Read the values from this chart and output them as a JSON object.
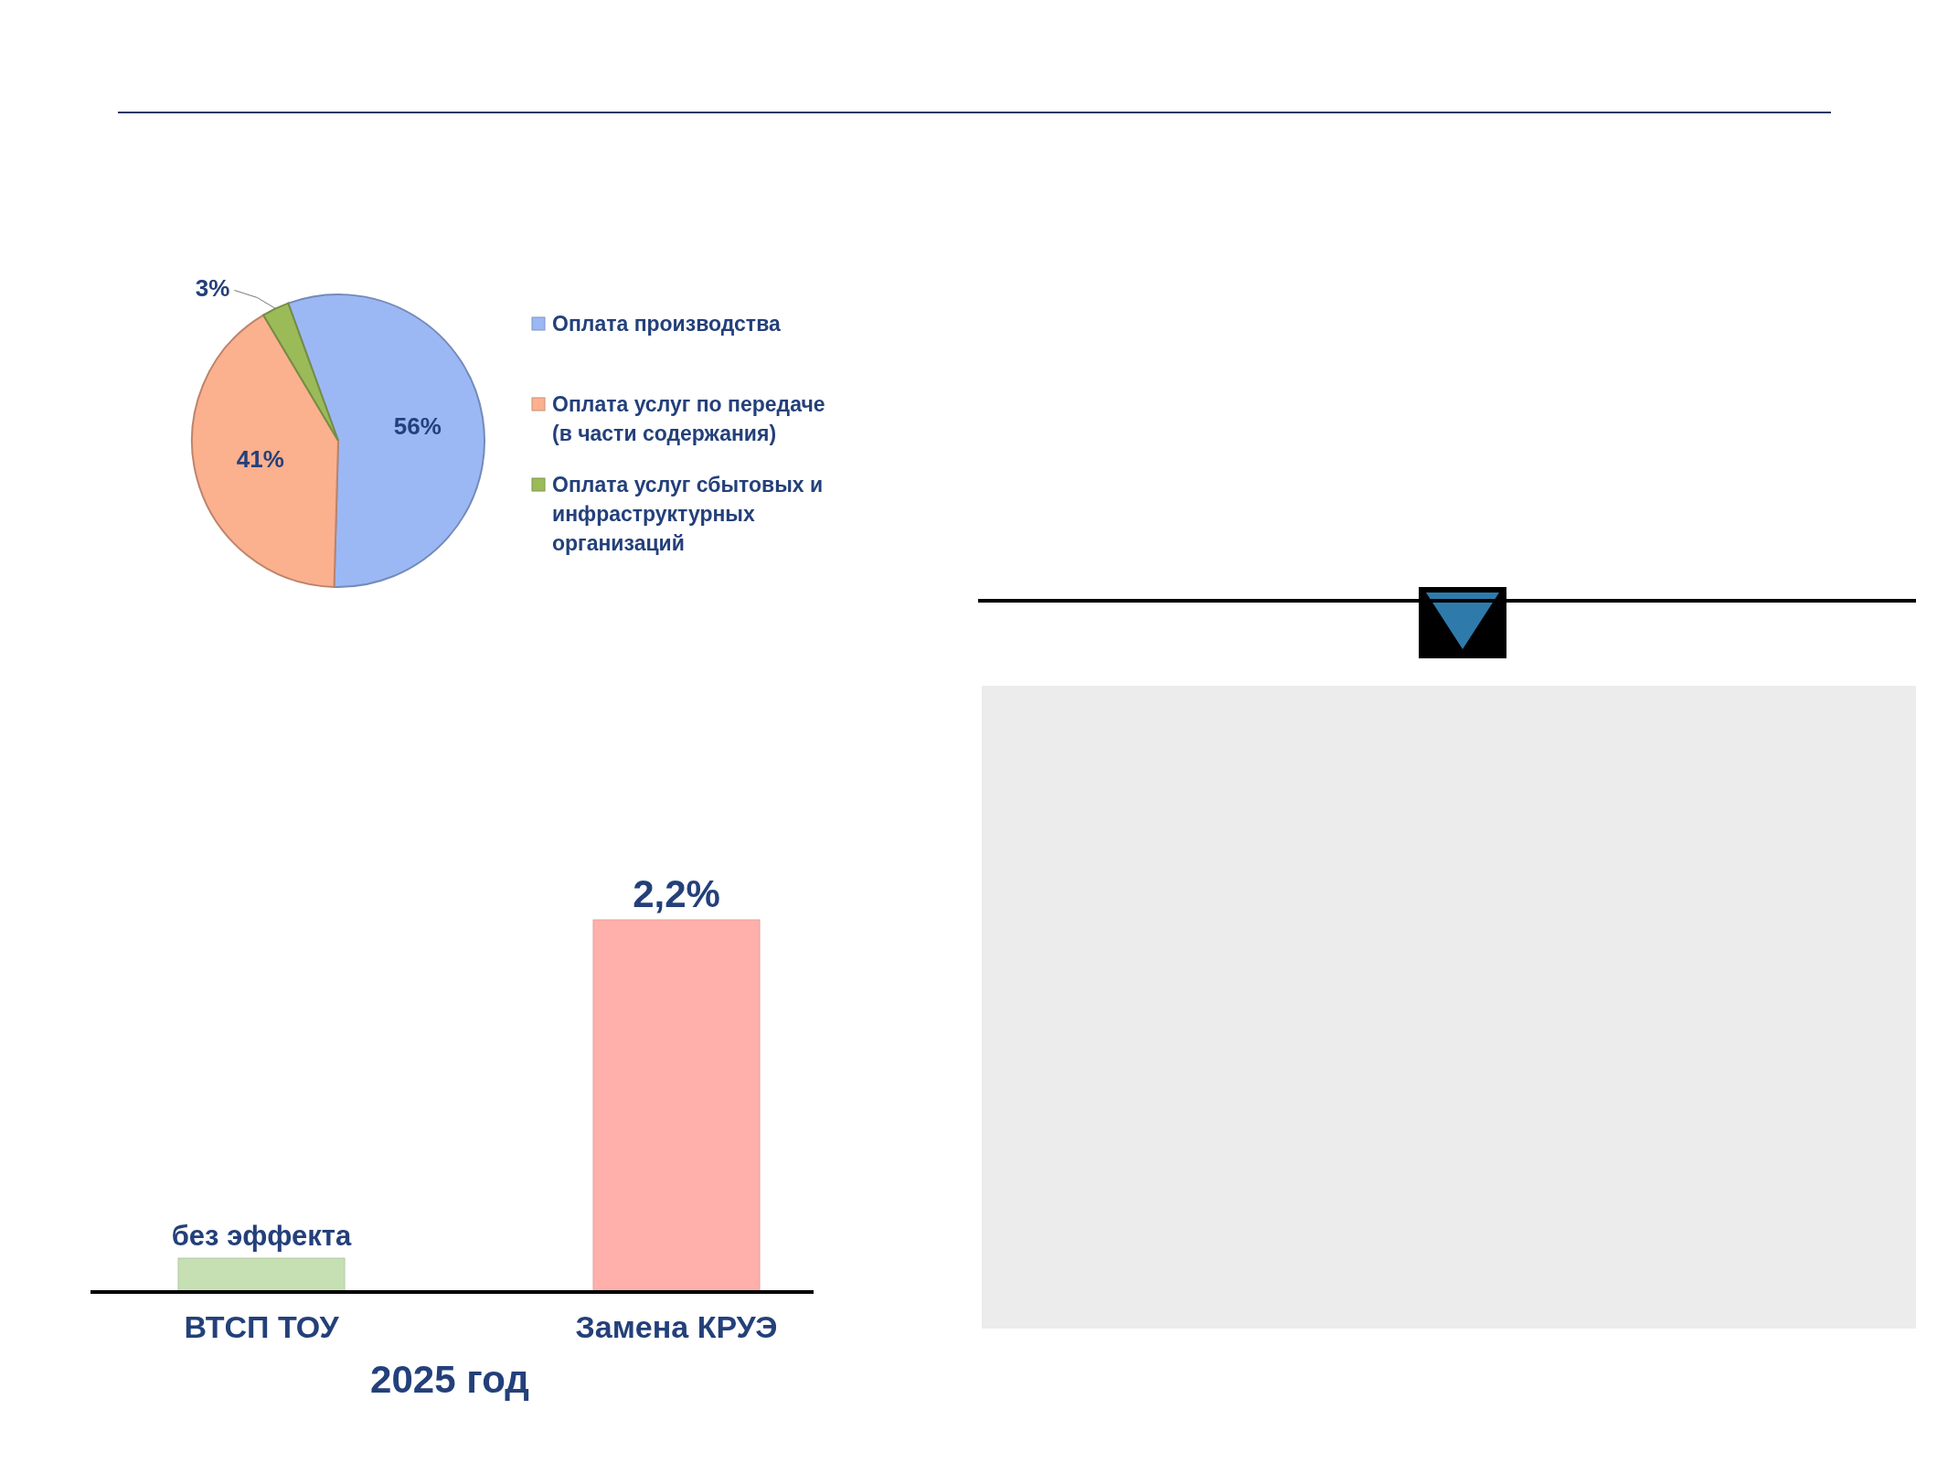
{
  "chart_data": [
    {
      "type": "pie",
      "categories": [
        "Оплата производства",
        "Оплата услуг по передаче (в части содержания)",
        "Оплата услуг сбытовых и инфраструктурных организаций"
      ],
      "values": [
        56,
        41,
        3
      ],
      "colors": [
        "#9bb8f5",
        "#fbb08e",
        "#9bbb59"
      ],
      "value_labels": [
        "56%",
        "41%",
        "3%"
      ],
      "legend": "right"
    },
    {
      "type": "bar",
      "categories": [
        "ВТСП ТОУ",
        "Замена КРУЭ"
      ],
      "values": [
        0.2,
        2.2
      ],
      "colors": [
        "#c6e0b4",
        "#ffb0ab"
      ],
      "value_labels": [
        "без эффекта",
        "2,2%"
      ],
      "xlabel": "2025 год"
    }
  ]
}
